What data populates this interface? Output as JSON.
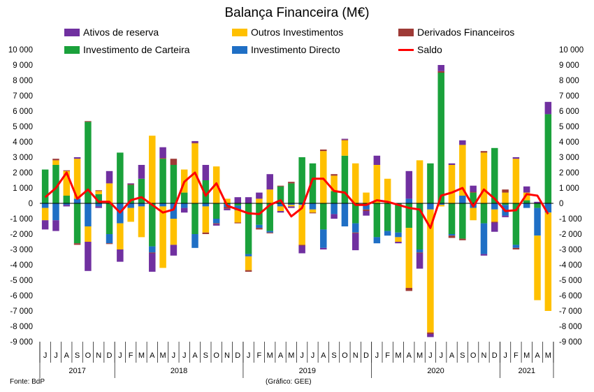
{
  "chart_data": {
    "type": "bar",
    "title": "Balança Financeira (M€)",
    "ylim": [
      -9000,
      10000
    ],
    "yticks": [
      -9000,
      -8000,
      -7000,
      -6000,
      -5000,
      -4000,
      -3000,
      -2000,
      -1000,
      0,
      1000,
      2000,
      3000,
      4000,
      5000,
      6000,
      7000,
      8000,
      9000,
      10000
    ],
    "ytick_labels": [
      "-9 000",
      "-8 000",
      "-7 000",
      "-6 000",
      "-5 000",
      "-4 000",
      "-3 000",
      "-2 000",
      "-1 000",
      "0",
      "1 000",
      "2 000",
      "3 000",
      "4 000",
      "5 000",
      "6 000",
      "7 000",
      "8 000",
      "9 000",
      "10 000"
    ],
    "grid": false,
    "stacked": true,
    "months": [
      "J",
      "J",
      "A",
      "S",
      "O",
      "N",
      "D",
      "J",
      "F",
      "M",
      "A",
      "M",
      "J",
      "J",
      "A",
      "S",
      "O",
      "N",
      "D",
      "J",
      "F",
      "M",
      "A",
      "M",
      "J",
      "J",
      "A",
      "S",
      "O",
      "N",
      "D",
      "J",
      "F",
      "M",
      "A",
      "M",
      "J",
      "J",
      "A",
      "S",
      "O",
      "N",
      "D",
      "J",
      "F",
      "M",
      "A",
      "M"
    ],
    "years": [
      {
        "label": "2017",
        "count": 7
      },
      {
        "label": "2018",
        "count": 12
      },
      {
        "label": "2019",
        "count": 12
      },
      {
        "label": "2020",
        "count": 12
      },
      {
        "label": "2021",
        "count": 5
      }
    ],
    "series": [
      {
        "name": "Investimento de Carteira",
        "color": "#1aa13b",
        "values": [
          2200,
          2500,
          500,
          -2600,
          5300,
          600,
          -2000,
          3300,
          1200,
          1600,
          -2800,
          2900,
          2500,
          700,
          -2000,
          1500,
          -1000,
          -50,
          -150,
          -3300,
          -1400,
          -1800,
          1100,
          1300,
          3000,
          2600,
          -1700,
          800,
          3100,
          -1300,
          -100,
          -2200,
          -1800,
          -1900,
          -1600,
          -3000,
          2600,
          8500,
          -2000,
          -2300,
          700,
          -1300,
          3600,
          -100,
          -2700,
          200,
          -300,
          5800
        ]
      },
      {
        "name": "Investimento Directo",
        "color": "#1f6fc5",
        "values": [
          -300,
          -1100,
          -100,
          300,
          -1500,
          -200,
          -600,
          -1300,
          -300,
          -200,
          -400,
          -200,
          -1000,
          -300,
          -900,
          -200,
          -300,
          -200,
          -300,
          -150,
          -200,
          -100,
          -200,
          -100,
          -100,
          -400,
          -1200,
          -700,
          -1500,
          -600,
          -300,
          -400,
          -300,
          -300,
          300,
          -200,
          -400,
          -100,
          -100,
          500,
          -300,
          -2000,
          -400,
          -700,
          -200,
          -300,
          -1800,
          -600
        ]
      },
      {
        "name": "Outros Investimentos",
        "color": "#ffc000",
        "values": [
          -800,
          300,
          1600,
          2600,
          -1000,
          200,
          1300,
          -1700,
          -900,
          -2000,
          4400,
          -4000,
          -1700,
          1500,
          3900,
          -1700,
          2400,
          300,
          -800,
          -900,
          300,
          900,
          -300,
          -100,
          -2600,
          -200,
          3400,
          1000,
          1000,
          2600,
          700,
          2500,
          1600,
          -300,
          -3900,
          2800,
          -8000,
          -100,
          2500,
          3300,
          -800,
          3300,
          -800,
          700,
          2900,
          500,
          -4200,
          -6400
        ]
      },
      {
        "name": "Derivados Financeiros",
        "color": "#9e3a36",
        "values": [
          0,
          100,
          50,
          -100,
          50,
          50,
          -50,
          0,
          50,
          0,
          -50,
          50,
          400,
          0,
          50,
          -100,
          -50,
          -100,
          -50,
          -100,
          -100,
          -50,
          50,
          100,
          -50,
          -50,
          100,
          100,
          50,
          -50,
          -100,
          0,
          0,
          0,
          -200,
          -50,
          -100,
          100,
          -150,
          -100,
          50,
          100,
          -50,
          200,
          -100,
          0,
          0,
          0
        ]
      },
      {
        "name": "Ativos de reserva",
        "color": "#7030a0",
        "values": [
          -600,
          -700,
          -100,
          100,
          -1900,
          -100,
          800,
          -800,
          50,
          900,
          -1200,
          700,
          -700,
          -300,
          100,
          1000,
          -100,
          -100,
          400,
          400,
          400,
          1000,
          -100,
          -100,
          -500,
          0,
          -100,
          -300,
          50,
          -1100,
          -300,
          600,
          0,
          -100,
          1800,
          -1000,
          -200,
          400,
          100,
          300,
          400,
          -100,
          -600,
          -100,
          100,
          400,
          100,
          800
        ]
      },
      {
        "name": "Saldo",
        "color": "#ff0000",
        "type": "line",
        "values": [
          400,
          1000,
          2000,
          300,
          900,
          100,
          100,
          -600,
          200,
          400,
          -100,
          -600,
          -400,
          1400,
          2000,
          500,
          1300,
          -150,
          -400,
          -650,
          -700,
          -100,
          200,
          -850,
          -300,
          1600,
          1600,
          800,
          700,
          -100,
          -100,
          200,
          100,
          -100,
          -300,
          -400,
          -1600,
          500,
          700,
          1000,
          -200,
          900,
          300,
          -500,
          -450,
          600,
          500,
          -700
        ]
      }
    ]
  },
  "legend": [
    {
      "name": "Ativos de reserva",
      "color": "#7030a0",
      "kind": "bar"
    },
    {
      "name": "Outros Investimentos",
      "color": "#ffc000",
      "kind": "bar"
    },
    {
      "name": "Derivados Financeiros",
      "color": "#9e3a36",
      "kind": "bar"
    },
    {
      "name": "Investimento de Carteira",
      "color": "#1aa13b",
      "kind": "bar"
    },
    {
      "name": "Investimento Directo",
      "color": "#1f6fc5",
      "kind": "bar"
    },
    {
      "name": "Saldo",
      "color": "#ff0000",
      "kind": "line"
    }
  ],
  "footer": {
    "source": "Fonte: BdP",
    "credit": "(Gráfico: GEE)"
  }
}
